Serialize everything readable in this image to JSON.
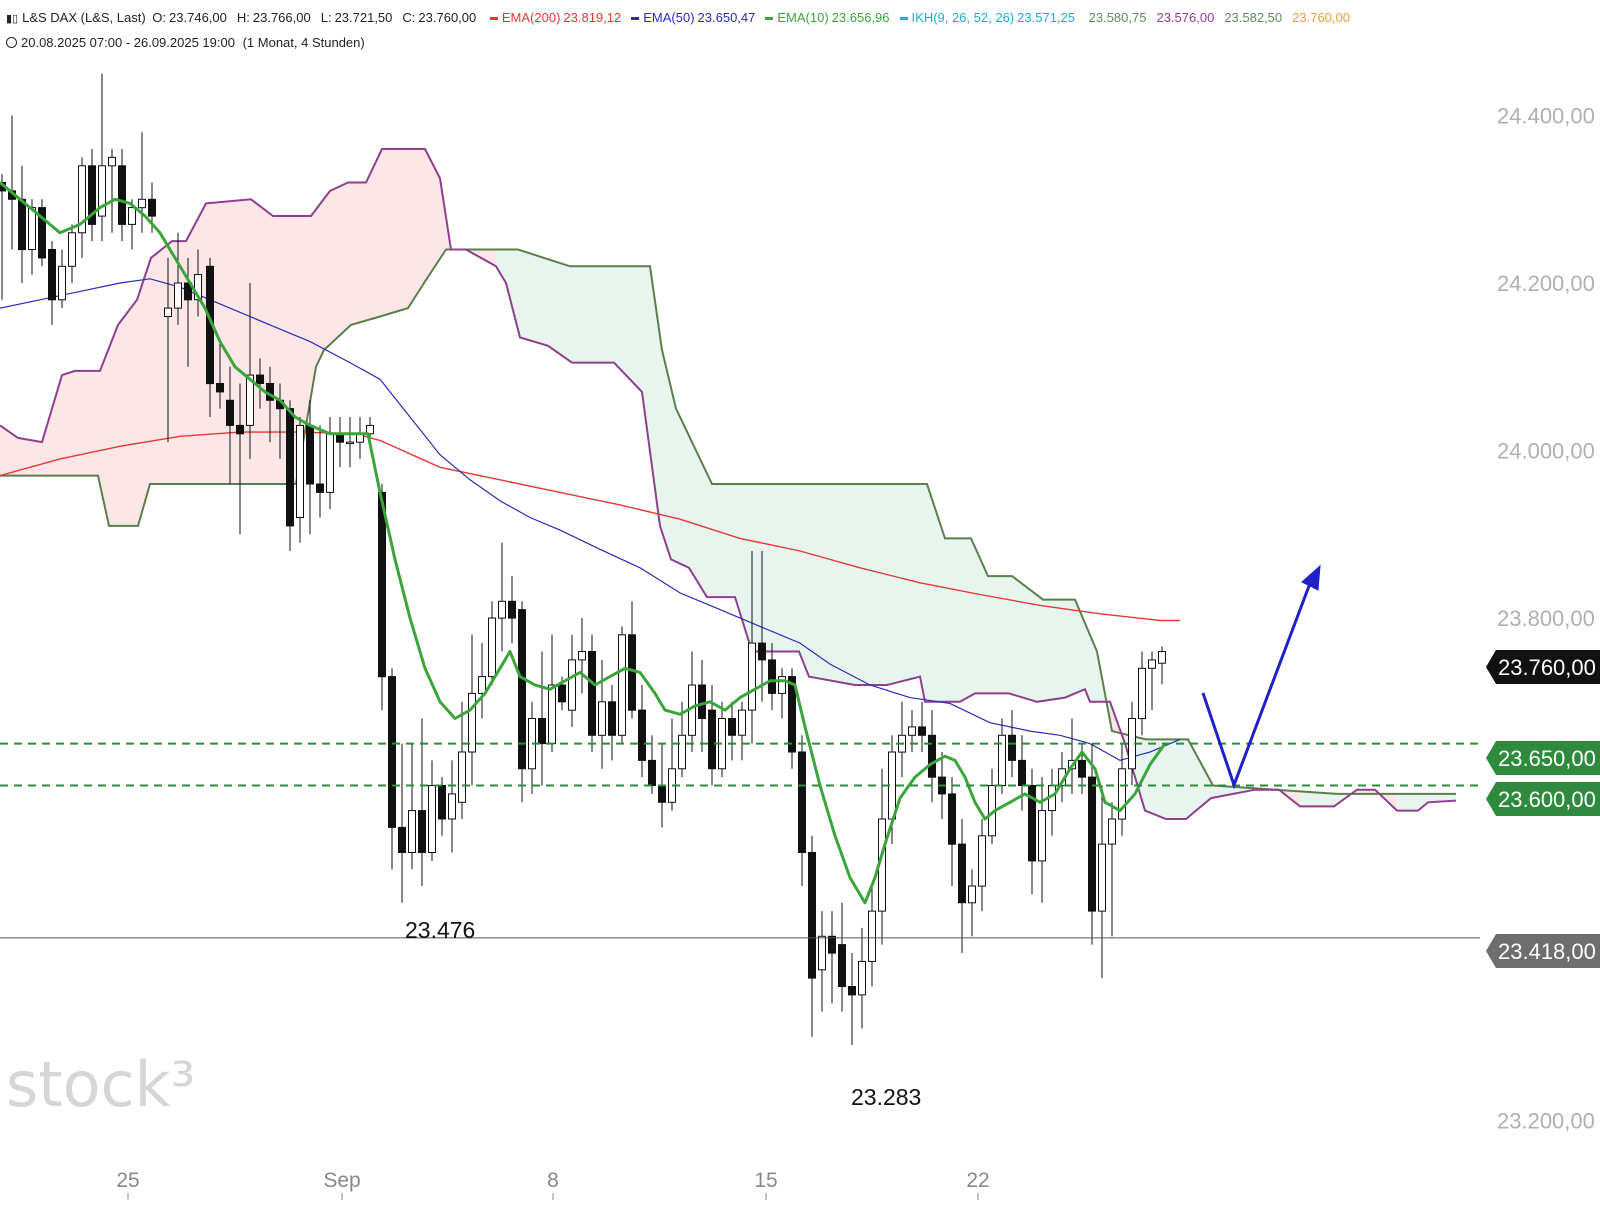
{
  "header": {
    "symbol": "L&S DAX (L&S, Last)",
    "ohlc": [
      {
        "label": "O:",
        "value": "23.746,00"
      },
      {
        "label": "H:",
        "value": "23.766,00"
      },
      {
        "label": "L:",
        "value": "23.721,50"
      },
      {
        "label": "C:",
        "value": "23.760,00"
      }
    ],
    "indicators": [
      {
        "name": "EMA(200)",
        "value": "23.819,12",
        "color": "#e53935"
      },
      {
        "name": "EMA(50)",
        "value": "23.650,47",
        "color": "#2b2bb5"
      },
      {
        "name": "EMA(10)",
        "value": "23.656,96",
        "color": "#3aa53a"
      },
      {
        "name": "IKH(9, 26, 52, 26)",
        "value": "23.571,25",
        "color": "#2aa7c9"
      }
    ],
    "ikh_extra": [
      {
        "value": "23.580,75",
        "color": "#5a8f5a"
      },
      {
        "value": "23.576,00",
        "color": "#8e3f8e"
      },
      {
        "value": "23.582,50",
        "color": "#5a8f5a"
      },
      {
        "value": "23.760,00",
        "color": "#e6a23c"
      }
    ],
    "range": "20.08.2025 07:00 - 26.09.2025 19:00",
    "period": "(1 Monat, 4 Stunden)"
  },
  "watermark": "stock³",
  "chart_data": {
    "type": "candlestick",
    "y_ticks": [
      "24.400,00",
      "24.200,00",
      "24.000,00",
      "23.800,00",
      "23.200,00"
    ],
    "y_tick_values": [
      24400,
      24200,
      24000,
      23800,
      23200
    ],
    "x_labels": [
      "25",
      "Sep",
      "8",
      "15",
      "22"
    ],
    "ylim": [
      23100,
      24560
    ],
    "price_tags": [
      {
        "value": 23760,
        "label": "23.760,00",
        "color": "#111111"
      },
      {
        "value": 23650,
        "label": "23.650,00",
        "color": "#2e8b3e"
      },
      {
        "value": 23600,
        "label": "23.600,00",
        "color": "#2e8b3e"
      },
      {
        "value": 23418,
        "label": "23.418,00",
        "color": "#6e6e6e"
      }
    ],
    "support_levels": [
      23650,
      23600
    ],
    "support_color": "#2e8b3e",
    "horizontal_line": 23418,
    "annotations": [
      {
        "text": "23.476",
        "value": 23476
      },
      {
        "text": "23.283",
        "value": 23283
      }
    ],
    "series": {
      "ema200_color": "#e53935",
      "ema50_color": "#2b2bb5",
      "ema10_color": "#3aa53a",
      "span_a_color": "#5a7f4a",
      "span_b_color": "#8e3f8e",
      "bull_cloud_color": "#e7f5ee",
      "bear_cloud_color": "#fde6e8",
      "projection_color": "#1f22c8"
    }
  }
}
